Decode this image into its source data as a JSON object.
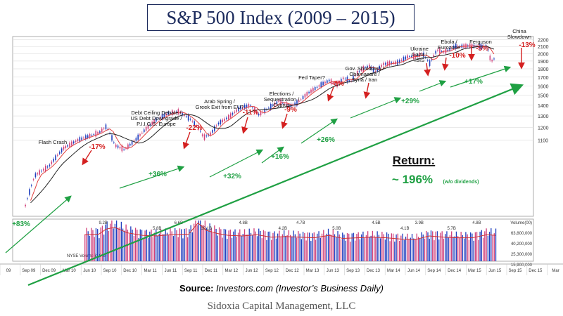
{
  "title": "S&P 500 Index (2009 – 2015)",
  "source": {
    "label": "Source:",
    "text": "Investors.com (Investor’s Business Daily)"
  },
  "footer": "Sidoxia Capital Management, LLC",
  "return_box": {
    "label": "Return:",
    "value": "~ 196%",
    "note": "(w/o dividends)"
  },
  "colors": {
    "up": "#1f3fbf",
    "down": "#d0407a",
    "annot_red": "#d42020",
    "annot_green": "#1fa043",
    "ma_red": "#e04040",
    "ma_black": "#222222",
    "vol_ma": "#d03030"
  },
  "chart_data": {
    "type": "line",
    "series": [
      {
        "values": [
          [
            2009.17,
            700
          ],
          [
            2009.3,
            860
          ],
          [
            2009.5,
            920
          ],
          [
            2009.7,
            1040
          ],
          [
            2009.9,
            1100
          ],
          [
            2010.05,
            1130
          ],
          [
            2010.2,
            1160
          ],
          [
            2010.3,
            1210
          ],
          [
            2010.42,
            1060
          ],
          [
            2010.55,
            1030
          ],
          [
            2010.7,
            1100
          ],
          [
            2010.85,
            1190
          ],
          [
            2011.0,
            1270
          ],
          [
            2011.15,
            1320
          ],
          [
            2011.3,
            1340
          ],
          [
            2011.45,
            1280
          ],
          [
            2011.58,
            1200
          ],
          [
            2011.65,
            1120
          ],
          [
            2011.75,
            1150
          ],
          [
            2011.85,
            1230
          ],
          [
            2012.0,
            1290
          ],
          [
            2012.15,
            1370
          ],
          [
            2012.3,
            1400
          ],
          [
            2012.42,
            1310
          ],
          [
            2012.55,
            1370
          ],
          [
            2012.7,
            1440
          ],
          [
            2012.85,
            1390
          ],
          [
            2012.95,
            1420
          ],
          [
            2013.1,
            1520
          ],
          [
            2013.3,
            1620
          ],
          [
            2013.4,
            1660
          ],
          [
            2013.5,
            1610
          ],
          [
            2013.6,
            1690
          ],
          [
            2013.7,
            1650
          ],
          [
            2013.8,
            1760
          ],
          [
            2013.95,
            1840
          ],
          [
            2014.05,
            1760
          ],
          [
            2014.15,
            1860
          ],
          [
            2014.35,
            1880
          ],
          [
            2014.5,
            1960
          ],
          [
            2014.6,
            1960
          ],
          [
            2014.7,
            2000
          ],
          [
            2014.8,
            1870
          ],
          [
            2014.9,
            2050
          ],
          [
            2015.0,
            2020
          ],
          [
            2015.15,
            2100
          ],
          [
            2015.35,
            2110
          ],
          [
            2015.5,
            2100
          ],
          [
            2015.6,
            2100
          ],
          [
            2015.65,
            1890
          ],
          [
            2015.72,
            1950
          ]
        ]
      }
    ],
    "volume": [
      [
        2010.0,
        4.3
      ],
      [
        2010.2,
        4.4
      ],
      [
        2010.3,
        5.2
      ],
      [
        2010.42,
        5.5
      ],
      [
        2010.6,
        4.6
      ],
      [
        2010.8,
        4.2
      ],
      [
        2011.0,
        4.1
      ],
      [
        2011.2,
        4.3
      ],
      [
        2011.45,
        4.4
      ],
      [
        2011.58,
        6.2
      ],
      [
        2011.7,
        5.0
      ],
      [
        2011.85,
        4.5
      ],
      [
        2012.0,
        4.2
      ],
      [
        2012.2,
        4.1
      ],
      [
        2012.4,
        4.3
      ],
      [
        2012.6,
        3.9
      ],
      [
        2012.8,
        4.0
      ],
      [
        2013.0,
        3.9
      ],
      [
        2013.2,
        3.8
      ],
      [
        2013.4,
        4.2
      ],
      [
        2013.6,
        3.7
      ],
      [
        2013.8,
        3.8
      ],
      [
        2014.0,
        3.9
      ],
      [
        2014.2,
        3.8
      ],
      [
        2014.4,
        3.6
      ],
      [
        2014.6,
        3.5
      ],
      [
        2014.8,
        4.1
      ],
      [
        2015.0,
        3.9
      ],
      [
        2015.2,
        3.8
      ],
      [
        2015.4,
        3.8
      ],
      [
        2015.6,
        4.3
      ],
      [
        2015.72,
        4.2
      ]
    ],
    "y_ticks": [
      "2200",
      "2100",
      "2000",
      "1900",
      "1800",
      "1700",
      "1600",
      "1500",
      "1400",
      "1300",
      "1200",
      "1100"
    ],
    "volume_ticks": [
      "Volume(00)",
      "63,800,000",
      "40,200,000",
      "25,300,000",
      "15,900,000"
    ],
    "x_ticks": [
      "09",
      "Sep 09",
      "Dec 09",
      "Mar 10",
      "Jun 10",
      "Sep 10",
      "Dec 10",
      "Mar 11",
      "Jun 11",
      "Sep 11",
      "Dec 11",
      "Mar 12",
      "Jun 12",
      "Sep 12",
      "Dec 12",
      "Mar 13",
      "Jun 13",
      "Sep 13",
      "Dec 13",
      "Mar 14",
      "Jun 14",
      "Sep 14",
      "Dec 14",
      "Mar 15",
      "Jun 15",
      "Sep 15",
      "Dec 15",
      "Mar"
    ],
    "volume_labels": [
      "9.2B",
      "5.8B",
      "6.6B",
      "10.1B",
      "4.8B",
      "4.2B",
      "4.7B",
      "5.0B",
      "4.5B",
      "4.1B",
      "3.9B",
      "5.7B",
      "4.8B"
    ],
    "volume_legend": "NYSE Volume in 000",
    "annotations": [
      {
        "text": "Flash Crash",
        "pct": "-17%"
      },
      {
        "text": "Debt Ceiling Debate /\nUS Debt Downgrade /\nP.I.I.G.S. Europe",
        "pct": "-22%"
      },
      {
        "text": "Arab Spring /\nGreek Exit from EU?",
        "pct": "-11%"
      },
      {
        "text": "Elections /\nSequestration /\nCyprus",
        "pct": "-9%"
      },
      {
        "text": "Fed Taper?",
        "pct": "-8%"
      },
      {
        "text": "Gov. Shutdown /\nObamacare /\nSyria / Iran",
        "pct": ""
      },
      {
        "text": "Ukraine\nGaza /\nISIS",
        "pct": ""
      },
      {
        "text": "Ebola /\nEurozone",
        "pct": "-10%"
      },
      {
        "text": "Ferguson",
        "pct": "-5%"
      },
      {
        "text": "China\nSlowdown",
        "pct": "-13%"
      }
    ],
    "gains": [
      "+83%",
      "+36%",
      "+32%",
      "+16%",
      "+26%",
      "+29%",
      "+17%"
    ]
  }
}
